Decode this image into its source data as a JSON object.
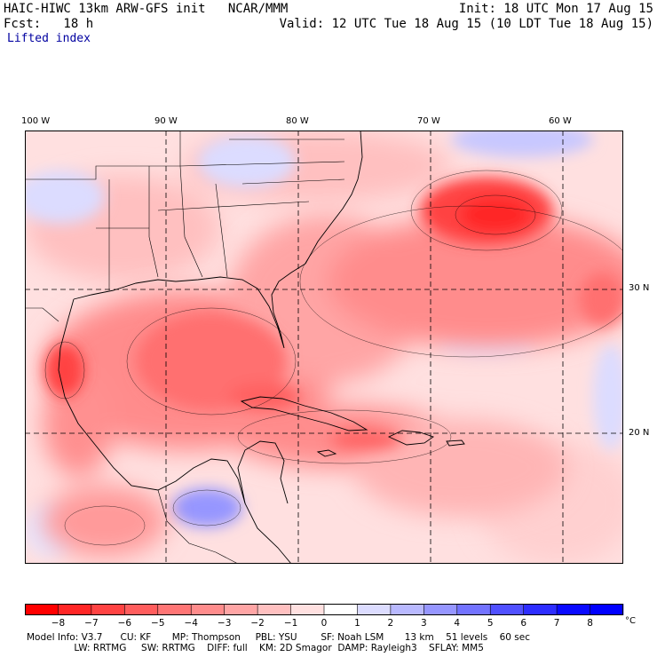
{
  "header": {
    "model_line": "HAIC-HIWC 13km ARW-GFS init   NCAR/MMM",
    "init_line": "Init: 18 UTC Mon 17 Aug 15",
    "fcst_line": "Fcst:   18 h",
    "valid_line": "Valid: 12 UTC Tue 18 Aug 15 (10 LDT Tue 18 Aug 15)",
    "field_name": "Lifted index"
  },
  "map": {
    "longitude_labels": [
      "100 W",
      "90 W",
      "80 W",
      "70 W",
      "60 W"
    ],
    "latitude_labels": [
      "30 N",
      "20 N"
    ]
  },
  "colorbar": {
    "levels": [
      -8,
      -7,
      -6,
      -5,
      -4,
      -3,
      -2,
      -1,
      0,
      1,
      2,
      3,
      4,
      5,
      6,
      7,
      8
    ],
    "unit": "°C",
    "colors": [
      "#ff0000",
      "#ff2626",
      "#ff4343",
      "#ff5d5d",
      "#ff7575",
      "#ff8c8c",
      "#ffa5a5",
      "#ffc0c0",
      "#ffe0e0",
      "#ffffff",
      "#dcdcff",
      "#b9b9ff",
      "#9696ff",
      "#7373ff",
      "#5050ff",
      "#2d2dff",
      "#0a0aff",
      "#0000ff"
    ]
  },
  "footer": {
    "line1": "Model Info: V3.7      CU: KF       MP: Thompson     PBL: YSU        SF: Noah LSM       13 km    51 levels    60 sec",
    "line2": "                LW: RRTMG     SW: RRTMG    DIFF: full    KM: 2D Smagor  DAMP: Rayleigh3    SFLAY: MM5"
  }
}
